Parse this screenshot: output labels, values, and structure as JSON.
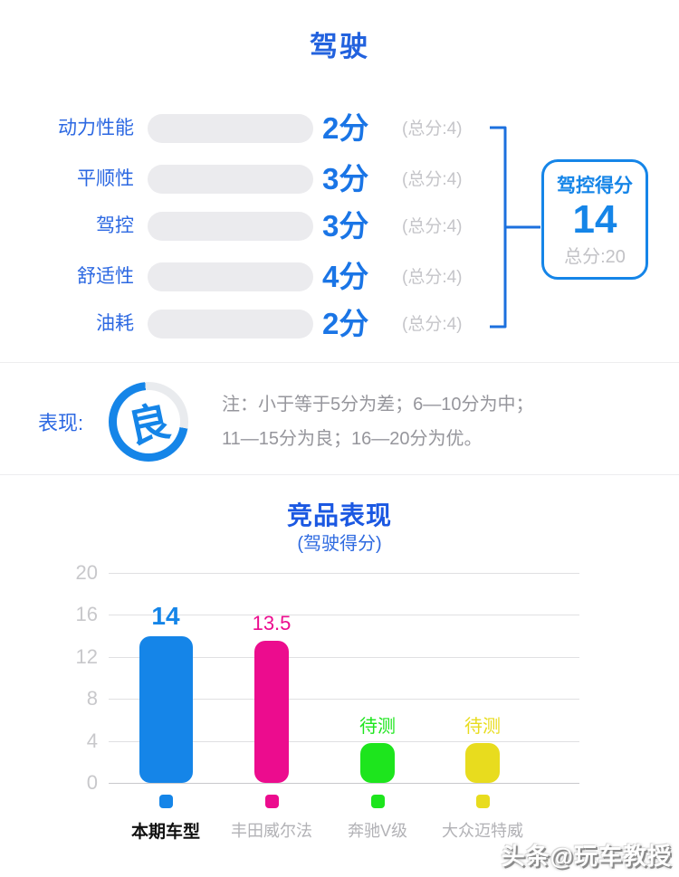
{
  "page": {
    "title": "驾驶"
  },
  "ratings": {
    "rows": [
      {
        "label": "动力性能",
        "score": 2,
        "max": 4,
        "score_text": "2分",
        "total_text": "(总分:4)"
      },
      {
        "label": "平顺性",
        "score": 3,
        "max": 4,
        "score_text": "3分",
        "total_text": "(总分:4)"
      },
      {
        "label": "驾控",
        "score": 3,
        "max": 4,
        "score_text": "3分",
        "total_text": "(总分:4)"
      },
      {
        "label": "舒适性",
        "score": 4,
        "max": 4,
        "score_text": "4分",
        "total_text": "(总分:4)"
      },
      {
        "label": "油耗",
        "score": 2,
        "max": 4,
        "score_text": "2分",
        "total_text": "(总分:4)"
      }
    ],
    "summary": {
      "title": "驾控得分",
      "value": "14",
      "total_text": "总分:20"
    }
  },
  "performance": {
    "label": "表现:",
    "grade": "良",
    "note_line1": "注：小于等于5分为差；6—10分为中；",
    "note_line2": "11—15分为良；16—20分为优。"
  },
  "chart_data": {
    "type": "bar",
    "title": "竞品表现",
    "subtitle": "(驾驶得分)",
    "categories": [
      "本期车型",
      "丰田威尔法",
      "奔驰V级",
      "大众迈特威"
    ],
    "values": [
      14,
      13.5,
      null,
      null
    ],
    "value_labels": [
      "14",
      "13.5",
      "待测",
      "待测"
    ],
    "display_heights": [
      14,
      13.5,
      3.8,
      3.8
    ],
    "colors": [
      "#1585e8",
      "#ec0c8e",
      "#1de51d",
      "#e8dc1e"
    ],
    "ylim": [
      0,
      20
    ],
    "yticks": [
      0,
      4,
      8,
      12,
      16,
      20
    ],
    "grid": true,
    "legend_position": "bottom"
  },
  "watermark": "头条@玩车教授",
  "colors": {
    "accent_blue": "#1585e8",
    "deep_blue": "#2262de",
    "bar_gradient_start": "#1e3cd2",
    "bar_gradient_end": "#0aa6f2",
    "track_gray": "#ebebee",
    "muted_gray": "#c5c5c9",
    "note_gray": "#96969c",
    "magenta": "#ec0c8e",
    "green": "#1de51d",
    "yellow": "#e8dc1e"
  }
}
